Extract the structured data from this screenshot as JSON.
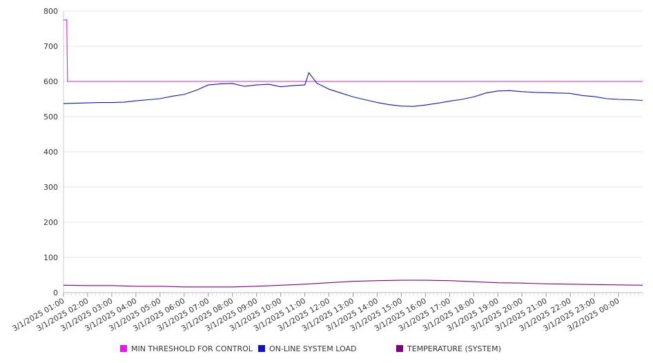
{
  "chart_data": {
    "type": "line",
    "title": "",
    "xlabel": "",
    "ylabel": "",
    "ylim": [
      0,
      800
    ],
    "yticks": [
      0,
      100,
      200,
      300,
      400,
      500,
      600,
      700,
      800
    ],
    "grid": true,
    "legend_position": "bottom",
    "x_tick_labels": [
      "3/1/2025 01:00",
      "3/1/2025 02:00",
      "3/1/2025 03:00",
      "3/1/2025 04:00",
      "3/1/2025 05:00",
      "3/1/2025 06:00",
      "3/1/2025 07:00",
      "3/1/2025 08:00",
      "3/1/2025 09:00",
      "3/1/2025 10:00",
      "3/1/2025 11:00",
      "3/1/2025 12:00",
      "3/1/2025 13:00",
      "3/1/2025 14:00",
      "3/1/2025 15:00",
      "3/1/2025 16:00",
      "3/1/2025 17:00",
      "3/1/2025 18:00",
      "3/1/2025 19:00",
      "3/1/2025 20:00",
      "3/1/2025 21:00",
      "3/1/2025 22:00",
      "3/1/2025 23:00",
      "3/2/2025 00:00"
    ],
    "x_range": [
      "3/1/2025 01:00",
      "3/2/2025 01:00"
    ],
    "series": [
      {
        "name": "MIN THRESHOLD FOR CONTROL",
        "color": "#e619e6",
        "points": [
          [
            "3/1/2025 01:00",
            775
          ],
          [
            "3/1/2025 01:08",
            775
          ],
          [
            "3/1/2025 01:10",
            600
          ],
          [
            "3/2/2025 01:00",
            600
          ]
        ]
      },
      {
        "name": "ON-LINE SYSTEM LOAD",
        "color": "#1010d0",
        "points": [
          [
            "3/1/2025 01:00",
            537
          ],
          [
            "3/1/2025 01:30",
            538
          ],
          [
            "3/1/2025 02:00",
            539
          ],
          [
            "3/1/2025 02:30",
            540
          ],
          [
            "3/1/2025 03:00",
            540
          ],
          [
            "3/1/2025 03:30",
            541
          ],
          [
            "3/1/2025 04:00",
            545
          ],
          [
            "3/1/2025 04:30",
            548
          ],
          [
            "3/1/2025 05:00",
            551
          ],
          [
            "3/1/2025 05:30",
            558
          ],
          [
            "3/1/2025 06:00",
            563
          ],
          [
            "3/1/2025 06:30",
            575
          ],
          [
            "3/1/2025 07:00",
            590
          ],
          [
            "3/1/2025 07:30",
            593
          ],
          [
            "3/1/2025 08:00",
            594
          ],
          [
            "3/1/2025 08:30",
            586
          ],
          [
            "3/1/2025 09:00",
            590
          ],
          [
            "3/1/2025 09:30",
            592
          ],
          [
            "3/1/2025 10:00",
            585
          ],
          [
            "3/1/2025 10:30",
            588
          ],
          [
            "3/1/2025 11:00",
            590
          ],
          [
            "3/1/2025 11:10",
            625
          ],
          [
            "3/1/2025 11:30",
            595
          ],
          [
            "3/1/2025 12:00",
            578
          ],
          [
            "3/1/2025 12:30",
            567
          ],
          [
            "3/1/2025 13:00",
            556
          ],
          [
            "3/1/2025 13:30",
            548
          ],
          [
            "3/1/2025 14:00",
            540
          ],
          [
            "3/1/2025 14:30",
            534
          ],
          [
            "3/1/2025 15:00",
            530
          ],
          [
            "3/1/2025 15:30",
            529
          ],
          [
            "3/1/2025 16:00",
            533
          ],
          [
            "3/1/2025 16:30",
            538
          ],
          [
            "3/1/2025 17:00",
            544
          ],
          [
            "3/1/2025 17:30",
            549
          ],
          [
            "3/1/2025 18:00",
            556
          ],
          [
            "3/1/2025 18:30",
            567
          ],
          [
            "3/1/2025 19:00",
            573
          ],
          [
            "3/1/2025 19:30",
            574
          ],
          [
            "3/1/2025 20:00",
            571
          ],
          [
            "3/1/2025 20:30",
            569
          ],
          [
            "3/1/2025 21:00",
            568
          ],
          [
            "3/1/2025 21:30",
            567
          ],
          [
            "3/1/2025 22:00",
            566
          ],
          [
            "3/1/2025 22:30",
            560
          ],
          [
            "3/1/2025 23:00",
            557
          ],
          [
            "3/1/2025 23:30",
            551
          ],
          [
            "3/2/2025 00:00",
            549
          ],
          [
            "3/2/2025 00:30",
            548
          ],
          [
            "3/2/2025 01:00",
            546
          ]
        ]
      },
      {
        "name": "TEMPERATURE (SYSTEM)",
        "color": "#800080",
        "points": [
          [
            "3/1/2025 01:00",
            21
          ],
          [
            "3/1/2025 02:00",
            20
          ],
          [
            "3/1/2025 03:00",
            20
          ],
          [
            "3/1/2025 04:00",
            18
          ],
          [
            "3/1/2025 05:00",
            18
          ],
          [
            "3/1/2025 06:00",
            16
          ],
          [
            "3/1/2025 07:00",
            16
          ],
          [
            "3/1/2025 08:00",
            16
          ],
          [
            "3/1/2025 09:00",
            18
          ],
          [
            "3/1/2025 10:00",
            21
          ],
          [
            "3/1/2025 11:00",
            24
          ],
          [
            "3/1/2025 12:00",
            28
          ],
          [
            "3/1/2025 13:00",
            32
          ],
          [
            "3/1/2025 14:00",
            34
          ],
          [
            "3/1/2025 15:00",
            35
          ],
          [
            "3/1/2025 16:00",
            35
          ],
          [
            "3/1/2025 17:00",
            34
          ],
          [
            "3/1/2025 18:00",
            31
          ],
          [
            "3/1/2025 19:00",
            28
          ],
          [
            "3/1/2025 20:00",
            27
          ],
          [
            "3/1/2025 21:00",
            25
          ],
          [
            "3/1/2025 22:00",
            24
          ],
          [
            "3/1/2025 23:00",
            23
          ],
          [
            "3/2/2025 00:00",
            22
          ],
          [
            "3/2/2025 01:00",
            21
          ]
        ]
      }
    ]
  }
}
